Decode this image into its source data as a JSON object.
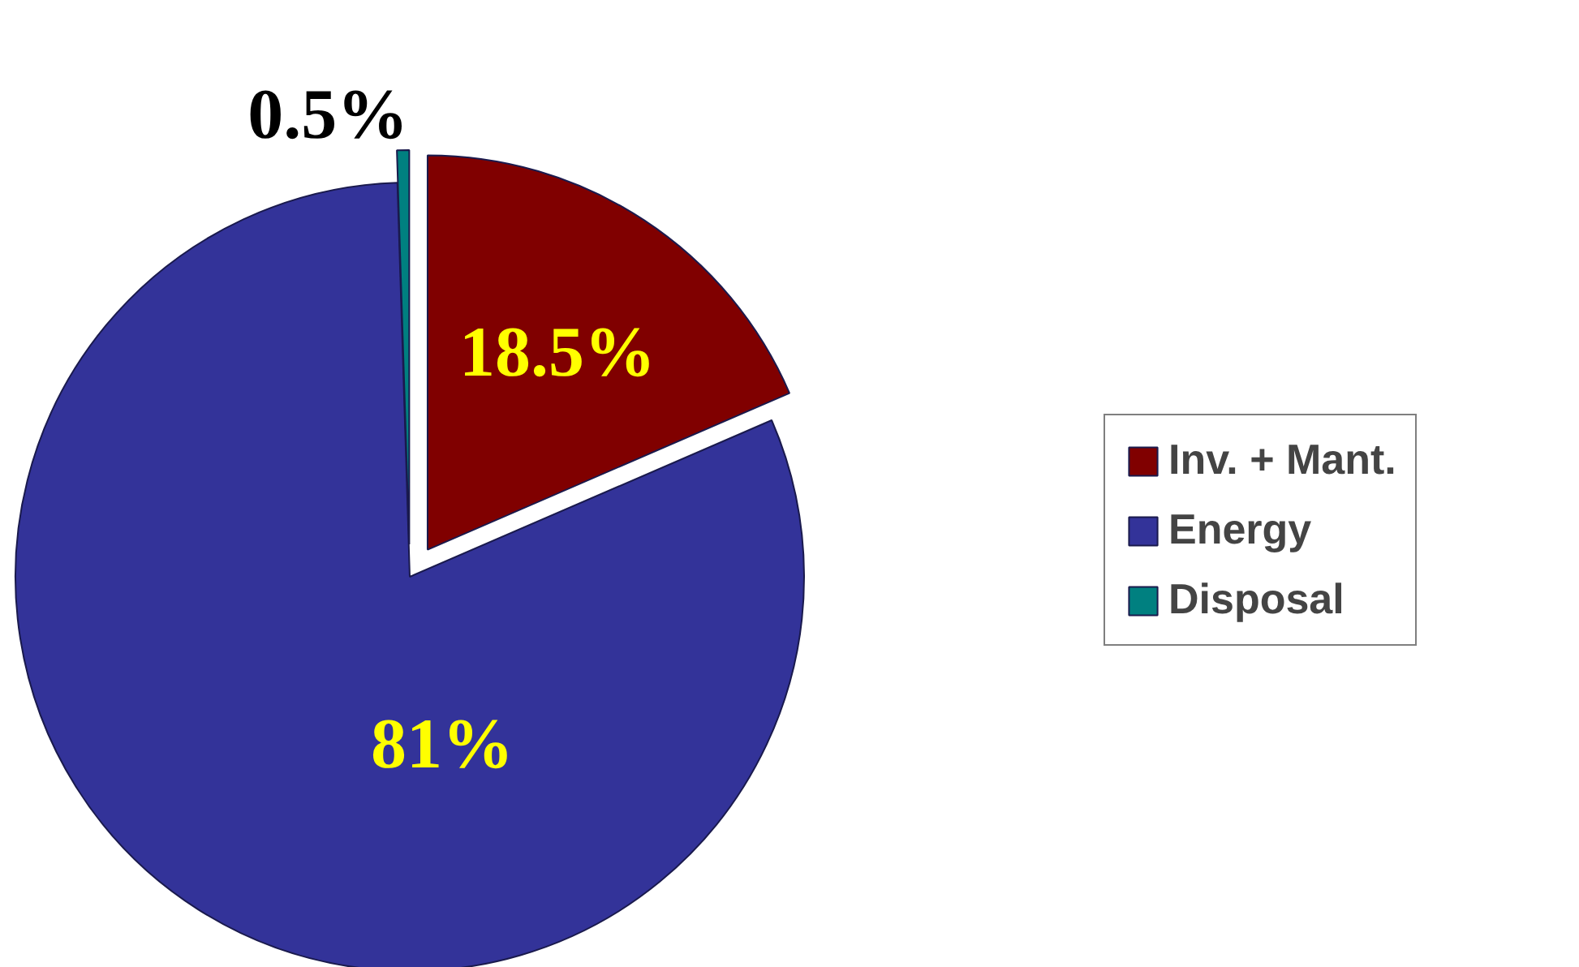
{
  "chart_data": {
    "type": "pie",
    "categories": [
      "Inv. + Mant.",
      "Energy",
      "Disposal"
    ],
    "values": [
      18.5,
      81,
      0.5
    ],
    "colors": [
      "#800000",
      "#333399",
      "#008080"
    ],
    "value_labels": [
      "18.5%",
      "81%",
      "0.5%"
    ],
    "legend": "right"
  }
}
